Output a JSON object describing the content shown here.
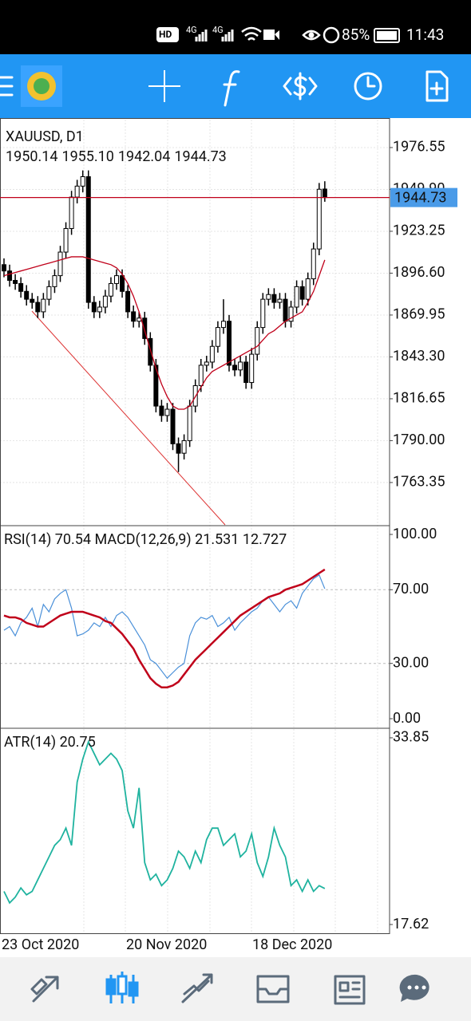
{
  "status_bar": {
    "hd": "HD",
    "network": [
      "4G",
      "4G"
    ],
    "battery": "85%",
    "time": "11:43"
  },
  "chart_data": [
    {
      "type": "candlestick",
      "title": "XAUUSD, D1",
      "ohlc_labels": [
        "1950.14",
        "1955.10",
        "1942.04",
        "1944.73"
      ],
      "open": [
        1902,
        1898,
        1892,
        1890,
        1885,
        1880,
        1878,
        1872,
        1880,
        1888,
        1895,
        1910,
        1925,
        1945,
        1952,
        1958,
        1878,
        1872,
        1875,
        1882,
        1890,
        1895,
        1885,
        1872,
        1866,
        1868,
        1855,
        1838,
        1812,
        1806,
        1810,
        1788,
        1782,
        1790,
        1812,
        1825,
        1838,
        1840,
        1850,
        1862,
        1866,
        1838,
        1835,
        1840,
        1827,
        1845,
        1862,
        1880,
        1883,
        1878,
        1880,
        1866,
        1875,
        1888,
        1880,
        1893,
        1912,
        1950.14
      ],
      "high": [
        1906,
        1902,
        1896,
        1894,
        1889,
        1884,
        1882,
        1884,
        1892,
        1899,
        1914,
        1929,
        1949,
        1956,
        1962,
        1962,
        1882,
        1879,
        1886,
        1894,
        1899,
        1899,
        1889,
        1876,
        1872,
        1872,
        1859,
        1842,
        1816,
        1814,
        1814,
        1792,
        1794,
        1816,
        1829,
        1842,
        1844,
        1854,
        1866,
        1880,
        1870,
        1842,
        1844,
        1844,
        1849,
        1866,
        1884,
        1887,
        1887,
        1884,
        1884,
        1879,
        1892,
        1892,
        1897,
        1916,
        1954,
        1955.1
      ],
      "low": [
        1894,
        1888,
        1886,
        1881,
        1876,
        1874,
        1868,
        1868,
        1876,
        1884,
        1891,
        1906,
        1921,
        1941,
        1948,
        1874,
        1868,
        1868,
        1871,
        1878,
        1886,
        1881,
        1868,
        1862,
        1862,
        1851,
        1834,
        1808,
        1802,
        1802,
        1784,
        1770,
        1778,
        1786,
        1808,
        1821,
        1834,
        1836,
        1846,
        1858,
        1834,
        1831,
        1831,
        1823,
        1823,
        1841,
        1858,
        1876,
        1874,
        1874,
        1862,
        1862,
        1871,
        1876,
        1876,
        1889,
        1908,
        1942.04
      ],
      "close": [
        1898,
        1892,
        1890,
        1885,
        1880,
        1878,
        1872,
        1880,
        1888,
        1895,
        1910,
        1925,
        1945,
        1952,
        1958,
        1878,
        1872,
        1875,
        1882,
        1890,
        1895,
        1885,
        1872,
        1866,
        1868,
        1855,
        1838,
        1812,
        1806,
        1810,
        1788,
        1782,
        1790,
        1812,
        1825,
        1838,
        1840,
        1850,
        1862,
        1866,
        1838,
        1835,
        1840,
        1827,
        1845,
        1862,
        1880,
        1883,
        1878,
        1880,
        1866,
        1875,
        1888,
        1880,
        1893,
        1912,
        1950,
        1944.73
      ],
      "ma": {
        "color": "#c0001a",
        "values": [
          1895,
          1896,
          1897,
          1898,
          1899,
          1900,
          1901,
          1902,
          1903,
          1904,
          1905,
          1906,
          1907,
          1907,
          1907,
          1906,
          1905,
          1904,
          1903,
          1902,
          1900,
          1896,
          1890,
          1882,
          1872,
          1860,
          1848,
          1836,
          1826,
          1818,
          1812,
          1810,
          1810,
          1812,
          1818,
          1824,
          1830,
          1834,
          1836,
          1838,
          1840,
          1842,
          1844,
          1846,
          1848,
          1850,
          1854,
          1858,
          1860,
          1863,
          1866,
          1868,
          1870,
          1872,
          1878,
          1885,
          1895,
          1905
        ]
      },
      "current_price": 1944.73,
      "ylim": [
        1736.4,
        1994.3
      ],
      "yticks": [
        1976.55,
        {
          "value": 1949.9,
          "label": "1949.90"
        },
        1923.25,
        {
          "value": 1896.6,
          "label": "1896.60"
        },
        1869.95,
        {
          "value": 1843.3,
          "label": "1843.30"
        },
        1816.65,
        {
          "value": 1790,
          "label": "1790.00"
        },
        1763.35
      ],
      "grid": true
    },
    {
      "type": "line",
      "title": "RSI(14) 70.54 MACD(12,26,9) 21.531 12.727",
      "series": [
        {
          "color": "#4a90d9",
          "width": 1.2,
          "values": [
            48,
            50,
            45,
            52,
            55,
            60,
            50,
            62,
            58,
            65,
            68,
            70,
            60,
            45,
            46,
            48,
            52,
            50,
            55,
            50,
            56,
            58,
            55,
            50,
            45,
            40,
            32,
            30,
            26,
            22,
            25,
            28,
            30,
            45,
            52,
            55,
            54,
            56,
            50,
            52,
            55,
            48,
            52,
            55,
            58,
            60,
            64,
            66,
            62,
            58,
            62,
            64,
            60,
            68,
            72,
            76,
            78,
            70.54
          ]
        },
        {
          "color": "#c0001a",
          "width": 2.5,
          "values": [
            56,
            55,
            55,
            54,
            52,
            51,
            50,
            50,
            52,
            54,
            56,
            57,
            58,
            58,
            58,
            57,
            56,
            55,
            53,
            52,
            49,
            46,
            42,
            38,
            32,
            27,
            22,
            19,
            17,
            17,
            18,
            20,
            24,
            28,
            32,
            35,
            38,
            41,
            44,
            47,
            50,
            53,
            56,
            58,
            60,
            62,
            64,
            66,
            67,
            68,
            70,
            71,
            72,
            73,
            75,
            77,
            79,
            81
          ]
        }
      ],
      "ylim": [
        -4.76,
        104.33
      ],
      "yticks": [
        {
          "value": 100,
          "label": "100.00"
        },
        {
          "value": 70,
          "label": "70.00"
        },
        {
          "value": 30,
          "label": "30.00"
        },
        {
          "value": 0,
          "label": "0.00"
        }
      ]
    },
    {
      "type": "line",
      "title": "ATR(14) 20.75",
      "series": [
        {
          "color": "#1fb39f",
          "width": 1.8,
          "values": [
            20.5,
            19.5,
            20.0,
            20.8,
            20.2,
            20.5,
            21.5,
            22.5,
            23.5,
            24.5,
            25.0,
            26.0,
            24.5,
            30.0,
            32.0,
            33.5,
            32.5,
            31.5,
            32.0,
            32.5,
            32.0,
            31.0,
            27.5,
            26.0,
            29.5,
            23.0,
            21.5,
            22.0,
            21.0,
            21.5,
            22.5,
            24.0,
            23.5,
            22.5,
            24.0,
            23.0,
            25.0,
            26.0,
            26.0,
            24.5,
            25.0,
            25.5,
            23.5,
            24.0,
            25.5,
            23.0,
            21.8,
            23.5,
            26.0,
            24.5,
            23.5,
            21.0,
            21.5,
            20.5,
            21.5,
            20.5,
            21.0,
            20.75
          ]
        }
      ],
      "ylim": [
        16.86,
        34.61
      ],
      "yticks": [
        33.85,
        17.62
      ],
      "x_labels": [
        "23 Oct 2020",
        "20 Nov 2020",
        "18 Dec 2020"
      ]
    }
  ]
}
